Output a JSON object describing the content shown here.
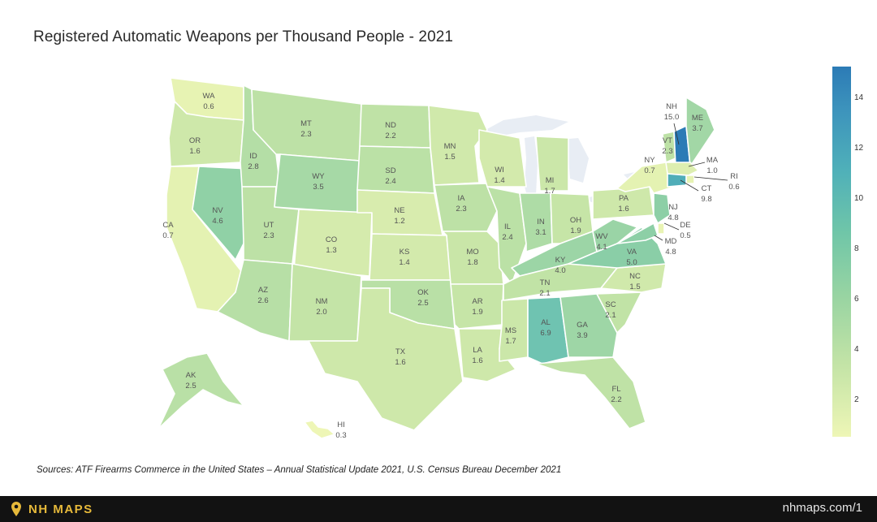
{
  "title": "Registered Automatic Weapons per Thousand People - 2021",
  "colorscale": {
    "min": 0.3,
    "max": 15.0,
    "ticks": [
      "14",
      "12",
      "10",
      "8",
      "6",
      "4",
      "2"
    ],
    "low_color": "#eef6b6",
    "high_color": "#2c7bb6"
  },
  "states": [
    {
      "code": "WA",
      "value": "0.6"
    },
    {
      "code": "OR",
      "value": "1.6"
    },
    {
      "code": "CA",
      "value": "0.7"
    },
    {
      "code": "NV",
      "value": "4.6"
    },
    {
      "code": "ID",
      "value": "2.8"
    },
    {
      "code": "MT",
      "value": "2.3"
    },
    {
      "code": "WY",
      "value": "3.5"
    },
    {
      "code": "UT",
      "value": "2.3"
    },
    {
      "code": "AZ",
      "value": "2.6"
    },
    {
      "code": "CO",
      "value": "1.3"
    },
    {
      "code": "NM",
      "value": "2.0"
    },
    {
      "code": "ND",
      "value": "2.2"
    },
    {
      "code": "SD",
      "value": "2.4"
    },
    {
      "code": "NE",
      "value": "1.2"
    },
    {
      "code": "KS",
      "value": "1.4"
    },
    {
      "code": "OK",
      "value": "2.5"
    },
    {
      "code": "TX",
      "value": "1.6"
    },
    {
      "code": "MN",
      "value": "1.5"
    },
    {
      "code": "IA",
      "value": "2.3"
    },
    {
      "code": "MO",
      "value": "1.8"
    },
    {
      "code": "AR",
      "value": "1.9"
    },
    {
      "code": "LA",
      "value": "1.6"
    },
    {
      "code": "WI",
      "value": "1.4"
    },
    {
      "code": "IL",
      "value": "2.4"
    },
    {
      "code": "MI",
      "value": "1.7"
    },
    {
      "code": "IN",
      "value": "3.1"
    },
    {
      "code": "OH",
      "value": "1.9"
    },
    {
      "code": "KY",
      "value": "4.0"
    },
    {
      "code": "TN",
      "value": "2.1"
    },
    {
      "code": "MS",
      "value": "1.7"
    },
    {
      "code": "AL",
      "value": "6.9"
    },
    {
      "code": "GA",
      "value": "3.9"
    },
    {
      "code": "FL",
      "value": "2.2"
    },
    {
      "code": "SC",
      "value": "2.1"
    },
    {
      "code": "NC",
      "value": "1.5"
    },
    {
      "code": "VA",
      "value": "5.0"
    },
    {
      "code": "WV",
      "value": "4.1"
    },
    {
      "code": "PA",
      "value": "1.6"
    },
    {
      "code": "NY",
      "value": "0.7"
    },
    {
      "code": "VT",
      "value": "2.3"
    },
    {
      "code": "NH",
      "value": "15.0"
    },
    {
      "code": "ME",
      "value": "3.7"
    },
    {
      "code": "MA",
      "value": "1.0"
    },
    {
      "code": "RI",
      "value": "0.6"
    },
    {
      "code": "CT",
      "value": "9.8"
    },
    {
      "code": "NJ",
      "value": "4.8"
    },
    {
      "code": "DE",
      "value": "0.5"
    },
    {
      "code": "MD",
      "value": "4.8"
    },
    {
      "code": "AK",
      "value": "2.5"
    },
    {
      "code": "HI",
      "value": "0.3"
    }
  ],
  "source": "Sources: ATF Firearms Commerce in the United States – Annual Statistical Update 2021, U.S. Census Bureau December 2021",
  "footer": {
    "brand": "NH MAPS",
    "site": "nhmaps.com/1",
    "brand_color": "#e6b93a"
  }
}
